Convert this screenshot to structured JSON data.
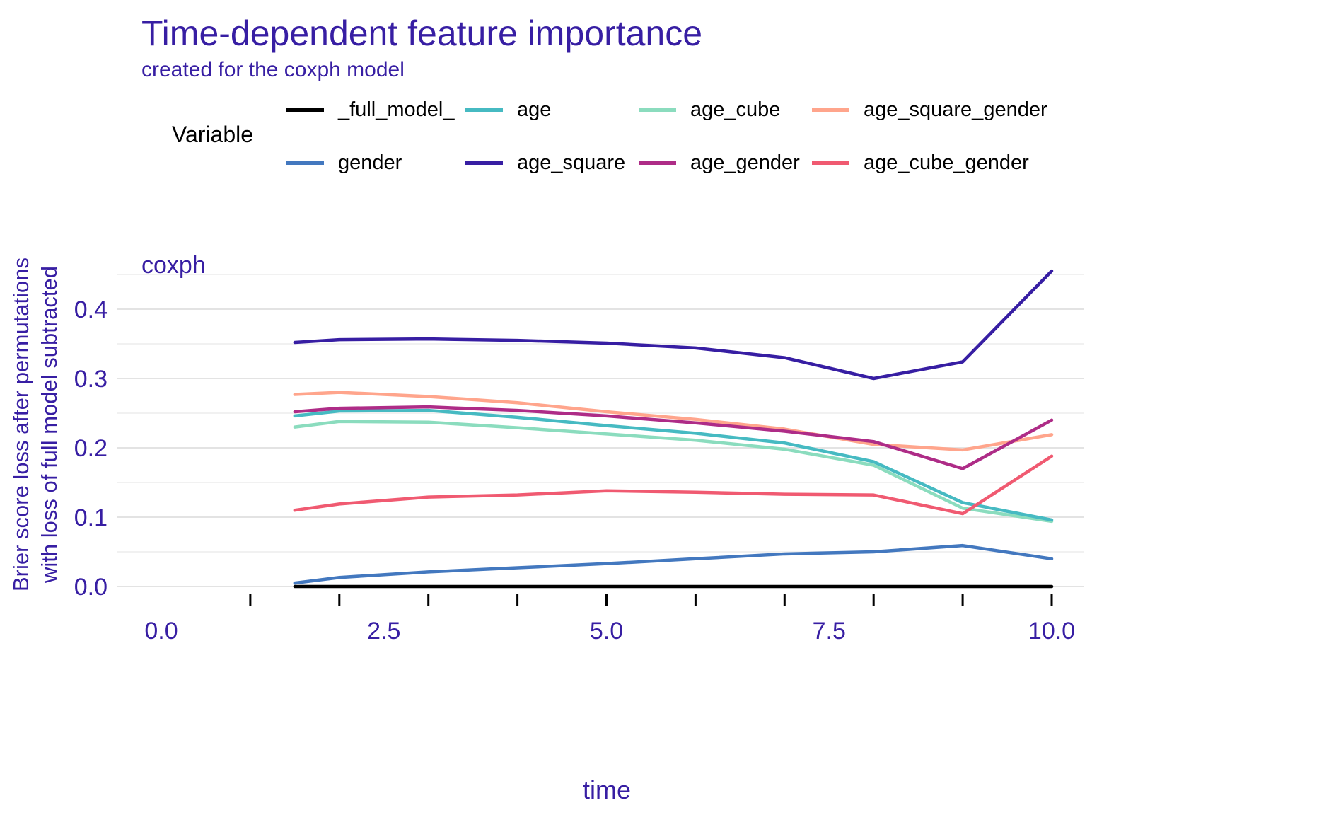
{
  "title": "Time-dependent feature importance",
  "subtitle": "created for the coxph model",
  "facet_label": "coxph",
  "legend": {
    "title": "Variable",
    "items": [
      {
        "label": "_full_model_",
        "color": "#000000"
      },
      {
        "label": "age",
        "color": "#46bac2"
      },
      {
        "label": "age_cube",
        "color": "#8bdcbe"
      },
      {
        "label": "age_square_gender",
        "color": "#ffa58c"
      },
      {
        "label": "gender",
        "color": "#4378bf"
      },
      {
        "label": "age_square",
        "color": "#371ea3"
      },
      {
        "label": "age_gender",
        "color": "#ae2c87"
      },
      {
        "label": "age_cube_gender",
        "color": "#f05a71"
      }
    ]
  },
  "chart_data": {
    "type": "line",
    "title": "Time-dependent feature importance",
    "subtitle": "created for the coxph model",
    "facet": "coxph",
    "xlabel": "time",
    "ylabel": "Brier score loss after permutations\nwith loss of full model subtracted",
    "xlim": [
      -0.5,
      10.35
    ],
    "ylim": [
      -0.01,
      0.47
    ],
    "xticks": [
      0.0,
      2.5,
      5.0,
      7.5,
      10.0
    ],
    "xtick_labels": [
      "0.0",
      "2.5",
      "5.0",
      "7.5",
      "10.0"
    ],
    "minor_xticks": [
      1,
      2,
      3,
      4,
      5,
      6,
      7,
      8,
      9,
      10
    ],
    "yticks": [
      0.0,
      0.1,
      0.2,
      0.3,
      0.4
    ],
    "ytick_labels": [
      "0.0",
      "0.1",
      "0.2",
      "0.3",
      "0.4"
    ],
    "grid_y_step": 0.05,
    "grid": "horizontal-only",
    "legend_position": "top",
    "x": [
      1.5,
      2,
      3,
      4,
      5,
      6,
      7,
      8,
      9,
      10
    ],
    "series": [
      {
        "name": "_full_model_",
        "color": "#000000",
        "values": [
          0,
          0,
          0,
          0,
          0,
          0,
          0,
          0,
          0,
          0
        ]
      },
      {
        "name": "gender",
        "color": "#4378bf",
        "values": [
          0.005,
          0.013,
          0.021,
          0.027,
          0.033,
          0.04,
          0.047,
          0.05,
          0.059,
          0.04
        ]
      },
      {
        "name": "age_cube",
        "color": "#8bdcbe",
        "values": [
          0.23,
          0.238,
          0.237,
          0.229,
          0.22,
          0.211,
          0.198,
          0.175,
          0.113,
          0.094
        ]
      },
      {
        "name": "age",
        "color": "#46bac2",
        "values": [
          0.246,
          0.253,
          0.254,
          0.244,
          0.232,
          0.221,
          0.207,
          0.18,
          0.121,
          0.096
        ]
      },
      {
        "name": "age_square_gender",
        "color": "#ffa58c",
        "values": [
          0.277,
          0.28,
          0.274,
          0.265,
          0.252,
          0.241,
          0.227,
          0.205,
          0.197,
          0.219
        ]
      },
      {
        "name": "age_gender",
        "color": "#ae2c87",
        "values": [
          0.252,
          0.257,
          0.259,
          0.254,
          0.246,
          0.236,
          0.224,
          0.209,
          0.17,
          0.24
        ]
      },
      {
        "name": "age_cube_gender",
        "color": "#f05a71",
        "values": [
          0.11,
          0.119,
          0.129,
          0.132,
          0.138,
          0.136,
          0.133,
          0.132,
          0.105,
          0.188
        ]
      },
      {
        "name": "age_square",
        "color": "#371ea3",
        "values": [
          0.352,
          0.356,
          0.357,
          0.355,
          0.351,
          0.344,
          0.33,
          0.3,
          0.324,
          0.455
        ]
      }
    ],
    "colors": {
      "text_accent": "#371ea3",
      "grid_major": "#e3e3e3",
      "grid_minor": "#f1f1f1",
      "tick_mark": "#000000"
    }
  }
}
